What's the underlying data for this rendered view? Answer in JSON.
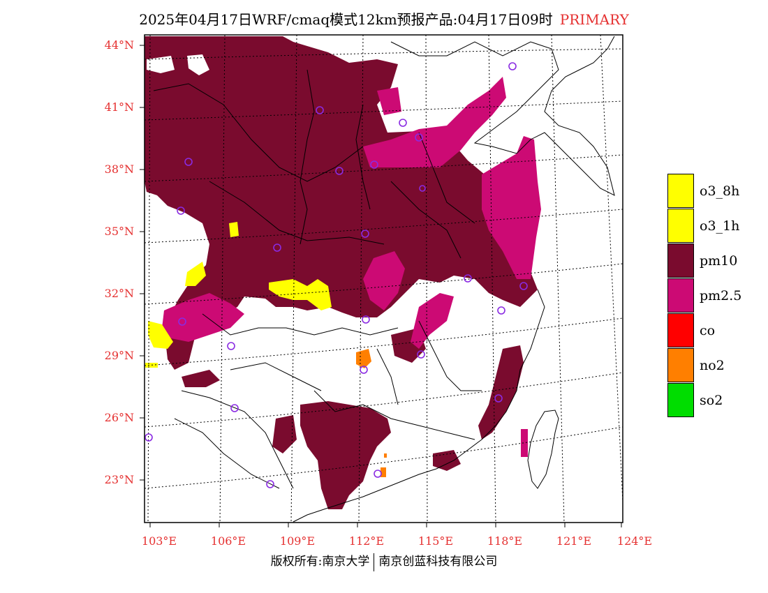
{
  "title": {
    "main": "2025年04月17日WRF/cmaq模式12km预报产品:04月17日09时",
    "tag": "PRIMARY"
  },
  "axes": {
    "lat_labels": [
      "44°N",
      "41°N",
      "38°N",
      "35°N",
      "32°N",
      "29°N",
      "26°N",
      "23°N"
    ],
    "lon_labels": [
      "103°E",
      "106°E",
      "109°E",
      "112°E",
      "115°E",
      "118°E",
      "121°E",
      "124°E"
    ]
  },
  "legend": {
    "items": [
      {
        "label": "o3_8h",
        "color": "#ffff00"
      },
      {
        "label": "o3_1h",
        "color": "#ffff00"
      },
      {
        "label": "pm10",
        "color": "#7a0b2e"
      },
      {
        "label": "pm2.5",
        "color": "#cc0a74"
      },
      {
        "label": "co",
        "color": "#ff0000"
      },
      {
        "label": "no2",
        "color": "#ff7f00"
      },
      {
        "label": "so2",
        "color": "#00dd00"
      }
    ]
  },
  "footer": {
    "left": "版权所有:南京大学",
    "right": "南京创蓝科技有限公司"
  },
  "colors": {
    "pm10": "#7a0b2e",
    "pm25": "#cc0a74",
    "o3": "#ffff00",
    "no2": "#ff7f00",
    "station": "#8a2be2",
    "accent": "#e53030"
  }
}
